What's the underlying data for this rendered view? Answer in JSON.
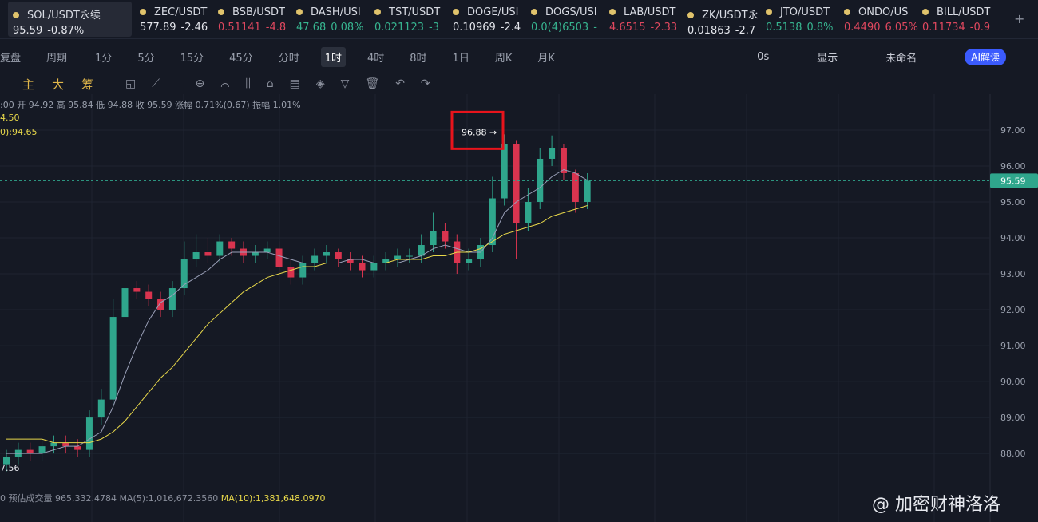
{
  "edge": "1",
  "tickers": [
    {
      "name": "SOL/USDT永续",
      "price": "95.59",
      "change": "-0.87%",
      "tone": "white"
    },
    {
      "name": "ZEC/USDT",
      "price": "577.89",
      "change": "-2.46",
      "tone": "white"
    },
    {
      "name": "BSB/USDT",
      "price": "0.51141",
      "change": "-4.8",
      "tone": "red"
    },
    {
      "name": "DASH/USI",
      "price": "47.68",
      "change": "0.08%",
      "tone": "green"
    },
    {
      "name": "TST/USDT",
      "price": "0.021123",
      "change": "-3",
      "tone": "green"
    },
    {
      "name": "DOGE/USI",
      "price": "0.10969",
      "change": "-2.4",
      "tone": "white"
    },
    {
      "name": "DOGS/USI",
      "price": "0.0(4)6503",
      "change": "-",
      "tone": "green"
    },
    {
      "name": "LAB/USDT",
      "price": "4.6515",
      "change": "-2.33",
      "tone": "red"
    },
    {
      "name": "ZK/USDT永",
      "price": "0.01863",
      "change": "-2.7",
      "tone": "white"
    },
    {
      "name": "JTO/USDT",
      "price": "0.5138",
      "change": "0.8%",
      "tone": "green"
    },
    {
      "name": "ONDO/US",
      "price": "0.4490",
      "change": "6.05%",
      "tone": "red"
    },
    {
      "name": "BILL/USDT",
      "price": "0.11734",
      "change": "-0.9",
      "tone": "red"
    }
  ],
  "toolbar": {
    "replay": "复盘",
    "period": "周期",
    "intervals": [
      "1分",
      "5分",
      "15分",
      "45分",
      "分时",
      "1时",
      "4时",
      "8时",
      "1日",
      "周K",
      "月K"
    ],
    "selected": "1时",
    "right": [
      "0s",
      "显示",
      "未命名"
    ],
    "ai": "AI解读"
  },
  "indicators": [
    "主",
    "大",
    "筹"
  ],
  "info": {
    "ohlc": ":00 开 94.92 高 95.84 低 94.88 收 95.59 涨幅 0.71%(0.67) 振幅 1.01%",
    "ma_a": "4.50",
    "ma_b": "0):94.65",
    "low_mark": "7.56",
    "volume": "0 预估成交量 965,332.4784 MA(5):1,016,672.3560",
    "volume_ma10": "MA(10):1,381,648.0970"
  },
  "watermark": "@ 加密财神洛洛",
  "chart_data": {
    "type": "candlestick",
    "open": [
      87.7,
      87.9,
      88.1,
      88.0,
      88.2,
      88.3,
      88.2,
      88.1,
      89.0,
      89.5,
      91.8,
      92.6,
      92.5,
      92.3,
      92.0,
      92.6,
      93.4,
      93.6,
      93.5,
      93.9,
      93.7,
      93.5,
      93.6,
      93.7,
      93.2,
      92.9,
      93.3,
      93.5,
      93.6,
      93.4,
      93.3,
      93.1,
      93.3,
      93.4,
      93.5,
      93.5,
      93.8,
      94.2,
      93.9,
      93.3,
      93.4,
      93.8,
      95.1,
      96.6,
      94.4,
      95.0,
      96.2,
      96.5,
      95.8,
      95.0
    ],
    "high": [
      88.1,
      88.3,
      88.3,
      88.4,
      88.5,
      88.5,
      88.4,
      89.2,
      89.8,
      92.3,
      92.8,
      92.8,
      92.7,
      92.5,
      92.8,
      93.9,
      94.1,
      94.0,
      94.1,
      94.0,
      93.9,
      93.8,
      93.9,
      93.9,
      93.4,
      93.5,
      93.7,
      93.8,
      93.7,
      93.6,
      93.5,
      93.5,
      93.6,
      93.7,
      93.7,
      94.1,
      94.7,
      94.4,
      94.1,
      93.7,
      94.0,
      95.7,
      96.88,
      96.7,
      95.4,
      96.5,
      96.85,
      96.6,
      95.9,
      95.8
    ],
    "low": [
      87.5,
      87.7,
      87.8,
      87.8,
      88.0,
      88.0,
      87.9,
      87.9,
      88.8,
      89.3,
      91.6,
      92.3,
      92.1,
      91.8,
      91.8,
      92.4,
      93.2,
      93.3,
      93.3,
      93.5,
      93.3,
      93.3,
      93.4,
      93.0,
      92.7,
      92.7,
      93.1,
      93.3,
      93.2,
      93.1,
      92.9,
      92.9,
      93.1,
      93.2,
      93.3,
      93.3,
      93.6,
      93.7,
      93.0,
      93.1,
      93.2,
      93.6,
      94.9,
      93.4,
      94.2,
      94.8,
      96.0,
      95.6,
      94.7,
      94.8
    ],
    "close": [
      87.9,
      88.1,
      88.0,
      88.2,
      88.3,
      88.2,
      88.1,
      89.0,
      89.5,
      91.8,
      92.6,
      92.5,
      92.3,
      92.0,
      92.6,
      93.4,
      93.6,
      93.5,
      93.9,
      93.7,
      93.5,
      93.6,
      93.7,
      93.2,
      92.9,
      93.3,
      93.5,
      93.6,
      93.4,
      93.3,
      93.1,
      93.3,
      93.4,
      93.5,
      93.5,
      93.8,
      94.2,
      93.9,
      93.3,
      93.4,
      93.8,
      95.1,
      96.6,
      94.4,
      95.0,
      96.2,
      96.5,
      95.8,
      95.0,
      95.59
    ],
    "up_color": "#2fa68c",
    "down_color": "#d9344f",
    "series": [
      {
        "color": "#9aa0b8",
        "values": [
          88.0,
          88.0,
          88.0,
          88.0,
          88.1,
          88.2,
          88.2,
          88.4,
          88.6,
          89.3,
          90.2,
          91.0,
          91.7,
          92.2,
          92.4,
          92.7,
          92.9,
          93.1,
          93.4,
          93.6,
          93.6,
          93.6,
          93.6,
          93.5,
          93.4,
          93.3,
          93.3,
          93.3,
          93.3,
          93.4,
          93.4,
          93.3,
          93.3,
          93.3,
          93.4,
          93.5,
          93.7,
          93.8,
          93.7,
          93.6,
          93.6,
          94.0,
          94.7,
          95.0,
          95.2,
          95.4,
          95.7,
          95.9,
          95.8,
          95.6
        ]
      },
      {
        "color": "#e8d84a",
        "values": [
          88.4,
          88.4,
          88.4,
          88.4,
          88.3,
          88.3,
          88.3,
          88.3,
          88.4,
          88.6,
          88.9,
          89.3,
          89.7,
          90.1,
          90.4,
          90.8,
          91.2,
          91.6,
          91.9,
          92.2,
          92.5,
          92.7,
          92.9,
          93.0,
          93.1,
          93.2,
          93.2,
          93.3,
          93.3,
          93.3,
          93.3,
          93.3,
          93.3,
          93.4,
          93.4,
          93.4,
          93.5,
          93.5,
          93.6,
          93.6,
          93.7,
          93.9,
          94.1,
          94.2,
          94.3,
          94.4,
          94.6,
          94.7,
          94.8,
          94.9
        ]
      }
    ],
    "ylim": [
      87.07,
      97.51
    ],
    "yticks": [
      {
        "value": 97,
        "label": "97.00"
      },
      {
        "value": 96,
        "label": "96.00"
      },
      {
        "value": 95,
        "label": "95.00"
      },
      {
        "value": 94,
        "label": "94.00"
      },
      {
        "value": 93,
        "label": "93.00"
      },
      {
        "value": 92,
        "label": "92.00"
      },
      {
        "value": 91,
        "label": "91.00"
      },
      {
        "value": 90,
        "label": "90.00"
      },
      {
        "value": 89,
        "label": "89.00"
      },
      {
        "value": 88,
        "label": "88.00"
      }
    ],
    "grid": true,
    "last_price": 95.59,
    "high_label": {
      "value": 96.88,
      "label": "96.88 →"
    }
  }
}
